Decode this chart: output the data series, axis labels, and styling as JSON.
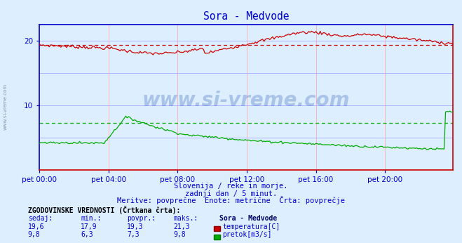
{
  "title": "Sora - Medvode",
  "title_color": "#0000cc",
  "bg_color": "#ddeeff",
  "plot_bg_color": "#ddeeff",
  "grid_color": "#ffaaaa",
  "grid_color_h": "#aaaaff",
  "axis_color": "#0000cc",
  "xlabel_ticks": [
    "pet 00:00",
    "pet 04:00",
    "pet 08:00",
    "pet 12:00",
    "pet 16:00",
    "pet 20:00"
  ],
  "ylabel_left_ticks": [
    10,
    20
  ],
  "ylim": [
    0,
    22.5
  ],
  "xlim": [
    0,
    287
  ],
  "watermark_text": "www.si-vreme.com",
  "subtitle1": "Slovenija / reke in morje.",
  "subtitle2": "zadnji dan / 5 minut.",
  "subtitle3": "Meritve: povprečne  Enote: metrične  Črta: povprečje",
  "legend_title": "ZGODOVINSKE VREDNOSTI (Črtkana črta):",
  "legend_headers": [
    "sedaj:",
    "min.:",
    "povpr.:",
    "maks.:",
    "Sora - Medvode"
  ],
  "legend_row1": [
    "19,6",
    "17,9",
    "19,3",
    "21,3",
    "temperatura[C]"
  ],
  "legend_row2": [
    "9,8",
    "6,3",
    "7,3",
    "9,8",
    "pretok[m3/s]"
  ],
  "temp_color": "#cc0000",
  "flow_color": "#00aa00",
  "avg_temp_color": "#cc0000",
  "avg_flow_color": "#00aa00",
  "sidebar_text": "www.si-vreme.com",
  "sidebar_color": "#8899aa",
  "spine_left_color": "#0000cc",
  "spine_top_color": "#0000cc",
  "spine_right_color": "#cc0000",
  "spine_bottom_color": "#cc0000"
}
